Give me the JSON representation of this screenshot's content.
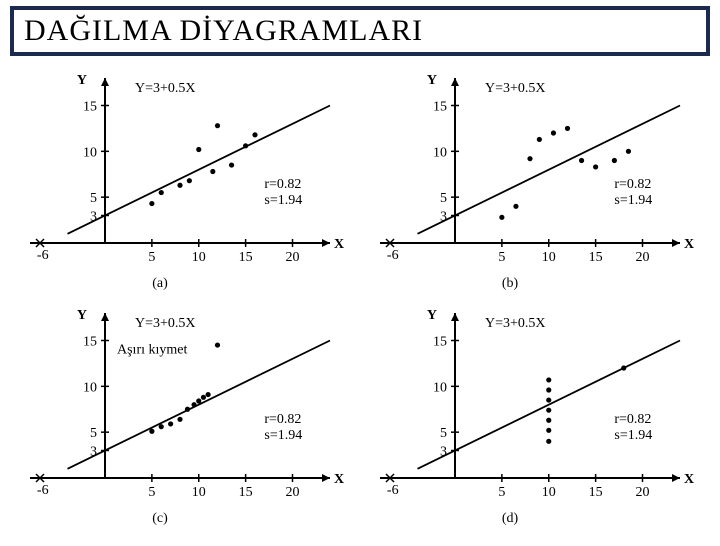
{
  "title": "DAĞILMA DİYAGRAMLARI",
  "common": {
    "equation": "Y=3+0.5X",
    "stats1": "r=0.82",
    "stats2": "s=1.94",
    "xlabel": "X",
    "ylabel": "Y",
    "xticks": [
      -6,
      5,
      10,
      15,
      20
    ],
    "yticks": [
      3,
      5,
      10,
      15
    ],
    "xlim": [
      -8,
      24
    ],
    "ylim": [
      0,
      18
    ],
    "line_p1": [
      -4,
      1
    ],
    "line_p2": [
      24,
      15
    ],
    "color_axis": "#000000",
    "color_point": "#000000",
    "color_line": "#000000",
    "point_radius": 2.6,
    "axis_font": 14
  },
  "panels": [
    {
      "caption": "(a)",
      "points": [
        [
          5,
          4.3
        ],
        [
          6,
          5.5
        ],
        [
          8,
          6.3
        ],
        [
          9,
          6.8
        ],
        [
          10,
          10.2
        ],
        [
          11.5,
          7.8
        ],
        [
          12,
          12.8
        ],
        [
          13.5,
          8.5
        ],
        [
          15,
          10.6
        ],
        [
          16,
          11.8
        ]
      ],
      "extra_label": null
    },
    {
      "caption": "(b)",
      "points": [
        [
          5,
          2.8
        ],
        [
          6.5,
          4.0
        ],
        [
          8,
          9.2
        ],
        [
          9,
          11.3
        ],
        [
          10.5,
          12.0
        ],
        [
          12,
          12.5
        ],
        [
          13.5,
          9.0
        ],
        [
          15,
          8.3
        ],
        [
          17,
          9.0
        ],
        [
          18.5,
          10.0
        ]
      ],
      "extra_label": null
    },
    {
      "caption": "(c)",
      "points": [
        [
          5,
          5.1
        ],
        [
          6,
          5.6
        ],
        [
          7,
          5.9
        ],
        [
          8,
          6.4
        ],
        [
          8.8,
          7.5
        ],
        [
          9.5,
          8.0
        ],
        [
          10,
          8.4
        ],
        [
          10.5,
          8.8
        ],
        [
          11,
          9.1
        ],
        [
          12,
          14.5
        ]
      ],
      "extra_label": "Aşırı kıymet"
    },
    {
      "caption": "(d)",
      "points": [
        [
          10,
          4.0
        ],
        [
          10,
          5.2
        ],
        [
          10,
          6.3
        ],
        [
          10,
          7.4
        ],
        [
          10,
          8.5
        ],
        [
          10,
          9.6
        ],
        [
          10,
          10.7
        ],
        [
          18,
          12.0
        ]
      ],
      "extra_label": null
    }
  ]
}
